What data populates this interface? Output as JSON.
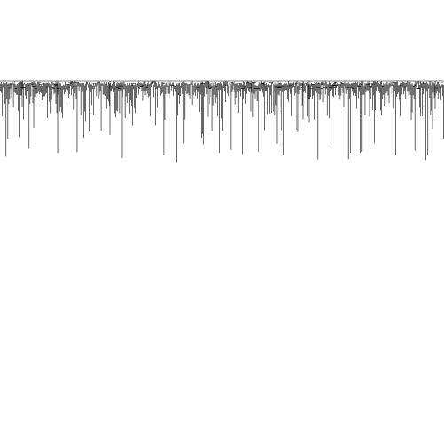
{
  "figure": {
    "kind": "dendrogram",
    "line_color": "#000000",
    "background_color": "#ffffff",
    "axes_visible": false,
    "labels_visible": false
  },
  "chart_data": {
    "type": "dendrogram",
    "title": "",
    "xlabel": "",
    "ylabel": "",
    "orientation": "leaves-down",
    "leaf_count_estimate": 480,
    "branch_height_range": [
      0,
      1
    ],
    "long_branches": [
      {
        "x_fraction": 0.13,
        "height": 0.28
      },
      {
        "x_fraction": 0.248,
        "height": 0.21
      },
      {
        "x_fraction": 0.468,
        "height": 0.14
      },
      {
        "x_fraction": 0.668,
        "height": 0.19
      },
      {
        "x_fraction": 0.682,
        "height": 0.15
      },
      {
        "x_fraction": 0.696,
        "height": 0.16
      },
      {
        "x_fraction": 0.742,
        "height": 0.06
      },
      {
        "x_fraction": 0.832,
        "height": 0.14
      },
      {
        "x_fraction": 0.05,
        "height": 0.1
      },
      {
        "x_fraction": 0.566,
        "height": 0.12
      },
      {
        "x_fraction": 0.98,
        "height": 0.11
      }
    ]
  }
}
